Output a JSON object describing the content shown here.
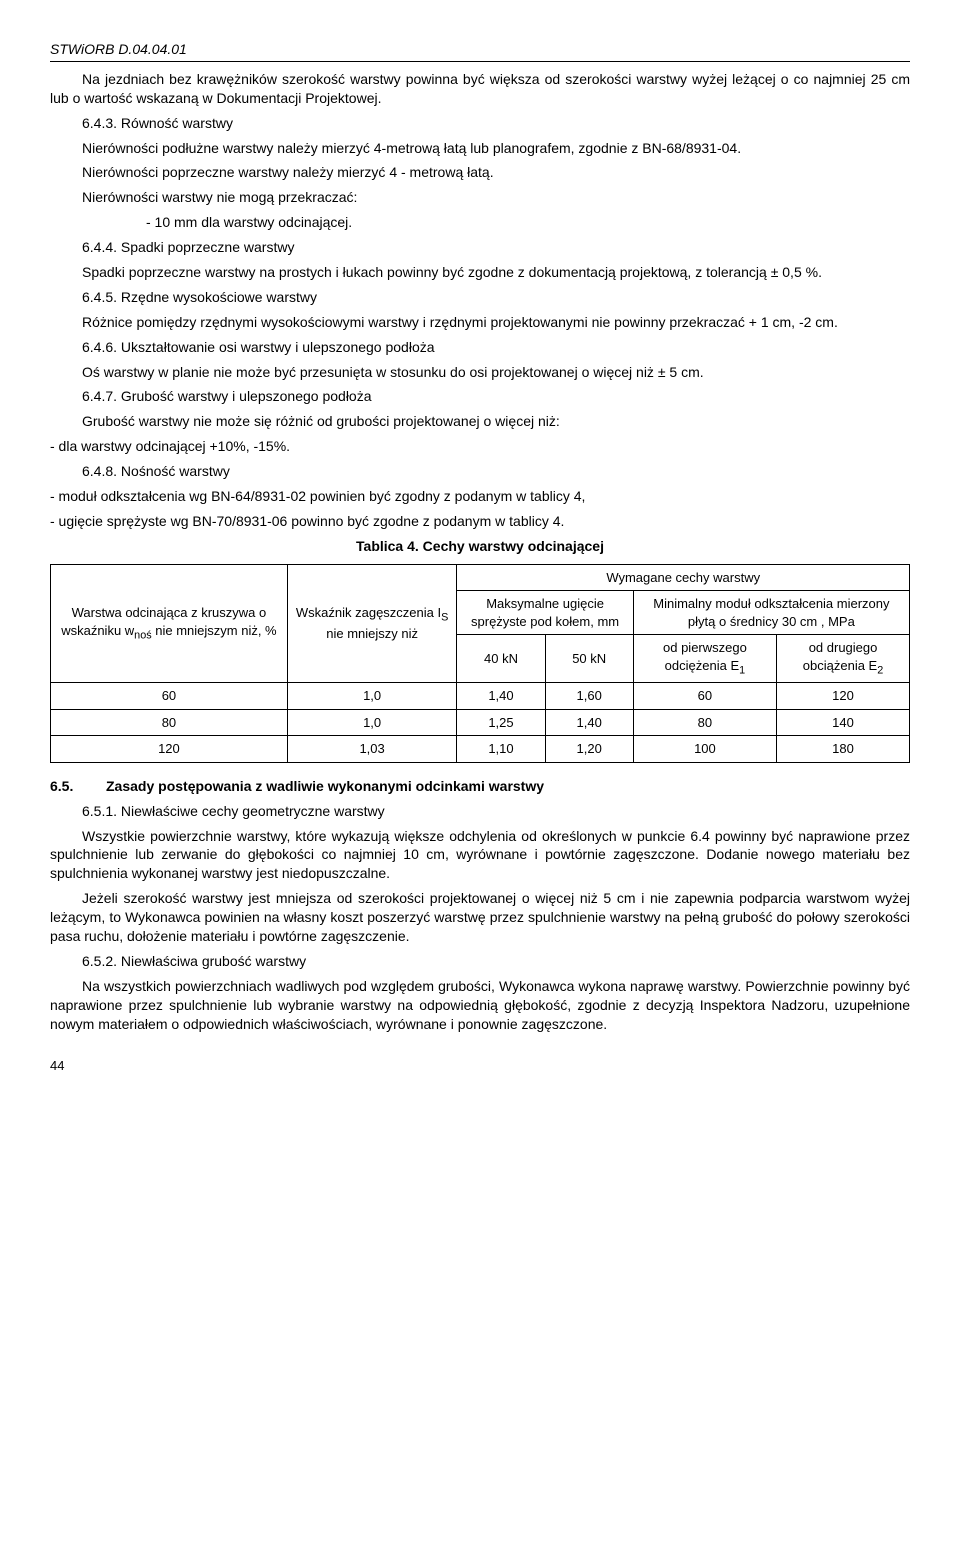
{
  "header": "STWiORB D.04.04.01",
  "s1": {
    "p1": "Na jezdniach bez krawężników szerokość warstwy powinna być większa od szerokości warstwy wyżej leżącej o co najmniej 25 cm lub o wartość wskazaną w Dokumentacji Projektowej.",
    "h1": "6.4.3. Równość warstwy",
    "p2": "Nierówności podłużne warstwy należy mierzyć 4-metrową łatą lub planografem, zgodnie z BN-68/8931-04.",
    "p3": "Nierówności poprzeczne warstwy należy mierzyć 4 - metrową łatą.",
    "p4": "Nierówności warstwy nie mogą przekraczać:",
    "p5": "- 10 mm dla warstwy odcinającej.",
    "h2": "6.4.4. Spadki poprzeczne warstwy",
    "p6": "Spadki poprzeczne warstwy na prostych i łukach powinny być zgodne z dokumentacją projektową, z tolerancją ± 0,5 %.",
    "h3": "6.4.5. Rzędne wysokościowe warstwy",
    "p7": "Różnice pomiędzy rzędnymi wysokościowymi warstwy i rzędnymi projektowanymi nie powinny przekraczać + 1 cm, -2 cm.",
    "h4": "6.4.6. Ukształtowanie osi warstwy i ulepszonego podłoża",
    "p8": "Oś warstwy w planie nie może być przesunięta w stosunku do osi projektowanej o więcej niż ± 5 cm.",
    "h5": "6.4.7. Grubość warstwy i ulepszonego podłoża",
    "p9": "Grubość warstwy nie może się różnić od grubości projektowanej o więcej niż:",
    "p10": "- dla warstwy odcinającej +10%, -15%.",
    "h6": "6.4.8. Nośność warstwy",
    "p11": "- moduł odkształcenia wg BN-64/8931-02 powinien być zgodny z podanym w tablicy 4,",
    "p12": "- ugięcie sprężyste wg BN-70/8931-06 powinno być zgodne z podanym w tablicy 4."
  },
  "tableCaption": "Tablica 4. Cechy warstwy odcinającej",
  "table": {
    "c1": "Warstwa odcinająca z kruszywa o wskaźniku w",
    "c1sub": "noś",
    "c1b": " nie mniejszym niż, %",
    "c2a": "Wskaźnik zagęszczenia I",
    "c2sub": "S",
    "c2b": " nie mniejszy niż",
    "c3": "Wymagane cechy warstwy",
    "c4": "Maksymalne ugięcie sprężyste pod kołem, mm",
    "c5": "Minimalny moduł odkształcenia mierzony płytą o średnicy 30 cm , MPa",
    "c6": "40 kN",
    "c7": "50 kN",
    "c8a": "od pierwszego odciężenia E",
    "c8sub": "1",
    "c9a": "od drugiego obciążenia E",
    "c9sub": "2",
    "rows": [
      [
        "60",
        "1,0",
        "1,40",
        "1,60",
        "60",
        "120"
      ],
      [
        "80",
        "1,0",
        "1,25",
        "1,40",
        "80",
        "140"
      ],
      [
        "120",
        "1,03",
        "1,10",
        "1,20",
        "100",
        "180"
      ]
    ]
  },
  "s2": {
    "num": "6.5.",
    "title": "Zasady postępowania z wadliwie wykonanymi odcinkami warstwy",
    "h1": "6.5.1. Niewłaściwe cechy geometryczne warstwy",
    "p1": "Wszystkie powierzchnie warstwy, które wykazują większe odchylenia od określonych w punkcie 6.4 powinny być naprawione przez spulchnienie lub zerwanie do głębokości co najmniej 10 cm, wyrównane i powtórnie zagęszczone. Dodanie nowego materiału bez spulchnienia wykonanej warstwy jest niedopuszczalne.",
    "p2": "Jeżeli szerokość warstwy jest mniejsza od szerokości projektowanej o więcej niż 5 cm i nie zapewnia podparcia warstwom wyżej leżącym, to Wykonawca powinien na własny koszt poszerzyć warstwę przez spulchnienie warstwy na pełną grubość do połowy szerokości pasa ruchu, dołożenie materiału i powtórne zagęszczenie.",
    "h2": "6.5.2. Niewłaściwa grubość warstwy",
    "p3": "Na wszystkich powierzchniach wadliwych pod względem grubości, Wykonawca wykona naprawę warstwy. Powierzchnie powinny być naprawione przez spulchnienie lub wybranie warstwy na odpowiednią głębokość, zgodnie z decyzją Inspektora Nadzoru, uzupełnione nowym materiałem o odpowiednich właściwościach, wyrównane i ponownie zagęszczone."
  },
  "pageNum": "44"
}
